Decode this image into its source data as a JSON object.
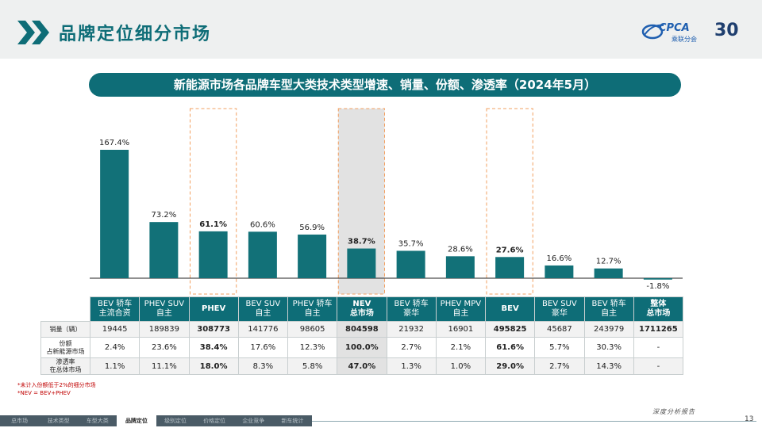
{
  "header": {
    "title": "品牌定位细分市场",
    "logo_text": "CPCA",
    "logo_sub": "乘联分会",
    "logo_30": "30"
  },
  "banner": {
    "title": "新能源市场各品牌车型大类技术类型增速、销量、份额、渗透率（2024年5月）"
  },
  "chart_data": {
    "type": "bar",
    "categories": [
      "BEV 轿车 主流合资",
      "PHEV SUV 自主",
      "PHEV",
      "BEV SUV 自主",
      "PHEV 轿车 自主",
      "NEV 总市场",
      "BEV 轿车 豪华",
      "PHEV MPV 自主",
      "BEV",
      "BEV SUV 豪华",
      "BEV 轿车 自主",
      "整体 总市场"
    ],
    "values": [
      167.4,
      73.2,
      61.1,
      60.6,
      56.9,
      38.7,
      35.7,
      28.6,
      27.6,
      16.6,
      12.7,
      -1.8
    ],
    "data_labels": [
      "167.4%",
      "73.2%",
      "61.1%",
      "60.6%",
      "56.9%",
      "38.7%",
      "35.7%",
      "28.6%",
      "27.6%",
      "16.6%",
      "12.7%",
      "-1.8%"
    ],
    "highlighted": [
      2,
      5,
      8
    ],
    "bold_labels": [
      2,
      5,
      8
    ],
    "ylim": [
      -5,
      175
    ],
    "bar_color": "#127178",
    "highlight_box_color": "#f2a061",
    "nev_box_fill": "#e2e2e2",
    "grid": false
  },
  "table": {
    "headers": [
      "BEV 轿车\n主流合资",
      "PHEV SUV\n自主",
      "PHEV",
      "BEV SUV\n自主",
      "PHEV 轿车\n自主",
      "NEV\n总市场",
      "BEV 轿车\n豪华",
      "PHEV MPV\n自主",
      "BEV",
      "BEV SUV\n豪华",
      "BEV 轿车\n自主",
      "整体\n总市场"
    ],
    "bold_headers": [
      2,
      5,
      8,
      11
    ],
    "rows": [
      {
        "label": "销量（辆）",
        "values": [
          "19445",
          "189839",
          "308773",
          "141776",
          "98605",
          "804598",
          "21932",
          "16901",
          "495825",
          "45687",
          "243979",
          "1711265"
        ]
      },
      {
        "label": "份额\n占新能源市场",
        "values": [
          "2.4%",
          "23.6%",
          "38.4%",
          "17.6%",
          "12.3%",
          "100.0%",
          "2.7%",
          "2.1%",
          "61.6%",
          "5.7%",
          "30.3%",
          "-"
        ]
      },
      {
        "label": "渗透率\n在总体市场",
        "values": [
          "1.1%",
          "11.1%",
          "18.0%",
          "8.3%",
          "5.8%",
          "47.0%",
          "1.3%",
          "1.0%",
          "29.0%",
          "2.7%",
          "14.3%",
          "-"
        ]
      }
    ],
    "bold_cols": [
      2,
      5,
      8
    ]
  },
  "notes": [
    "*未计入份额低于2%的细分市场",
    "*NEV = BEV+PHEV"
  ],
  "footer": {
    "nav": [
      "总市场",
      "技术类型",
      "车型大类",
      "品牌定位",
      "级别定位",
      "价格定位",
      "企业竞争",
      "新车统计"
    ],
    "active_index": 3,
    "brand": "深度分析报告",
    "page": "13"
  },
  "colors": {
    "accent": "#0e6d77",
    "nav_bg": "#4a5b66"
  }
}
